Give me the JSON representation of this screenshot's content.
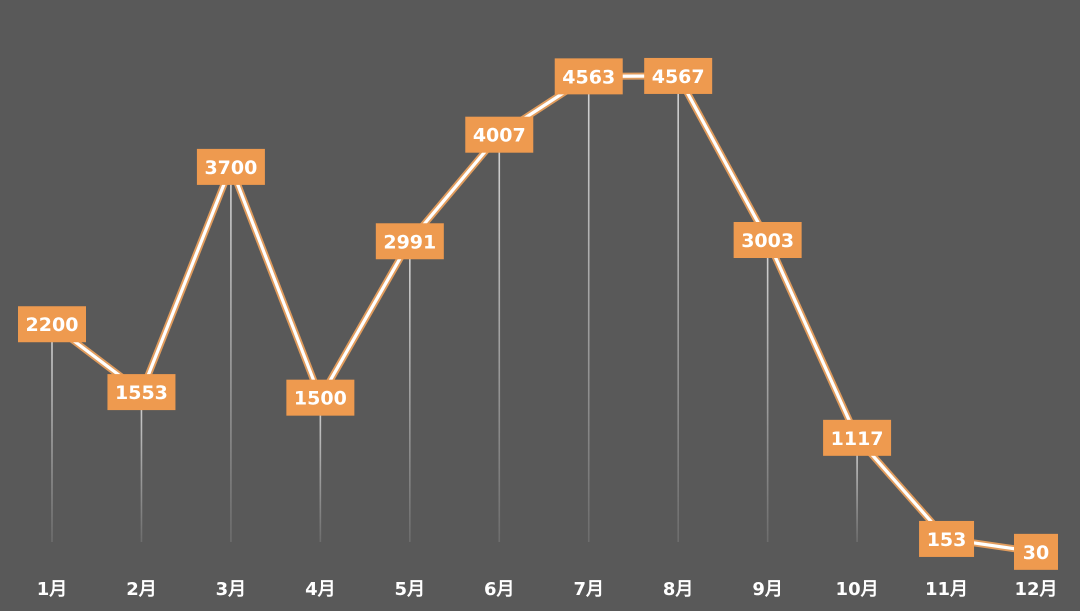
{
  "chart_data": {
    "type": "line",
    "title": "",
    "xlabel": "",
    "ylabel": "",
    "categories": [
      "1月",
      "2月",
      "3月",
      "4月",
      "5月",
      "6月",
      "7月",
      "8月",
      "9月",
      "10月",
      "11月",
      "12月"
    ],
    "series": [
      {
        "values": [
          2200,
          1553,
          3700,
          1500,
          2991,
          4007,
          4563,
          4567,
          3003,
          1117,
          153,
          30
        ]
      }
    ],
    "ylim": [
      0,
      4700
    ],
    "grid": false,
    "legend": "none",
    "colors": {
      "background": "#595959",
      "label_box": "#ee9a4f",
      "line_core": "#ffffff",
      "line_glow": "#e9a05e",
      "text": "#ffffff"
    }
  }
}
